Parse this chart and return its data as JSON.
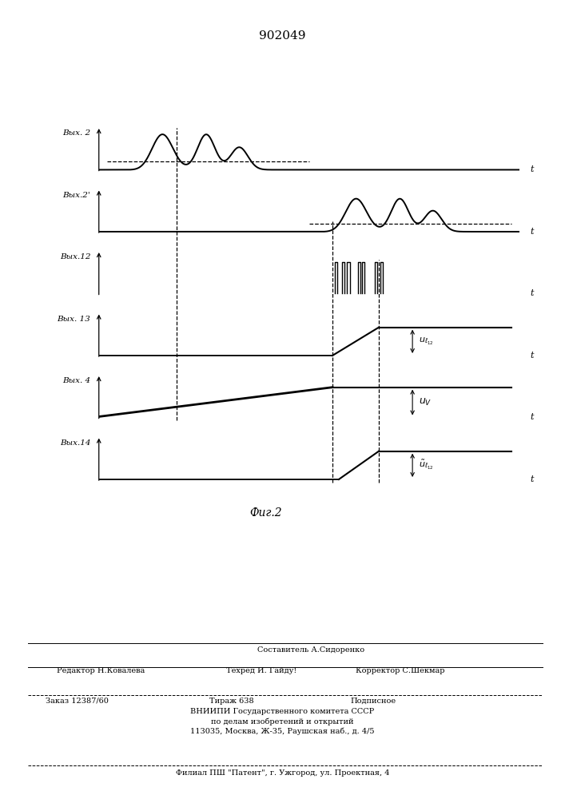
{
  "title": "902049",
  "fig_label": "Фиг.2",
  "background_color": "#ffffff",
  "panel_labels": [
    "Вых. 2",
    "Вых.2'",
    "Вых.12",
    "Вых. 13",
    "Вых. 4",
    "Вых.14"
  ],
  "t_axis_label": "t",
  "footer_lines": [
    "Составитель А.Сидоренко",
    "Редактор Н.Ковалева     Техред И. Гайду!   Корректор С.Шекмар",
    "Заказ 12387/60         Тираж 638          Подписное",
    "ВНИИПИ Государственного комитета СССР",
    "по делам изобретений и открытий",
    "113035, Москва, Ж-35, Раушская наб., д. 4/5",
    "Филиал ППП “Патент”, г. Ужгород, ул. Проектная, 4"
  ]
}
